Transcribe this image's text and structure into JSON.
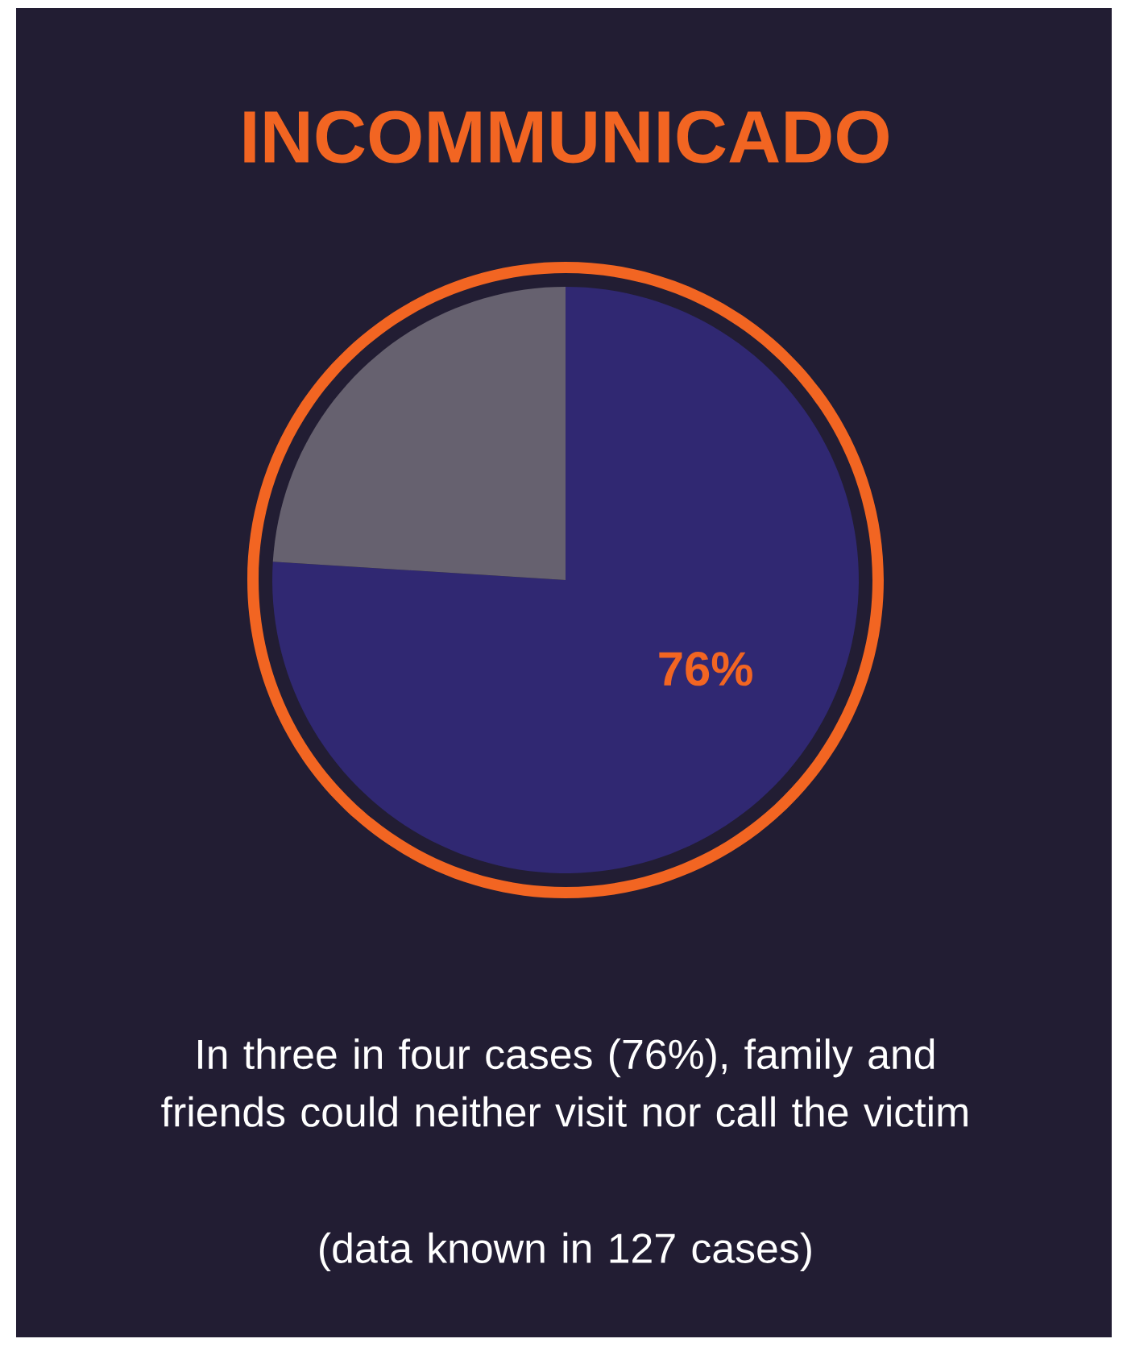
{
  "chart_data": {
    "type": "pie",
    "title": "INCOMMUNICADO",
    "categories": [
      null,
      null
    ],
    "values": [
      76,
      24
    ],
    "colors": [
      "#302872",
      "#66616f"
    ],
    "value_labels": [
      "76%",
      null
    ],
    "annotations": [
      "In three in four cases (76%), family and friends could neither visit nor call the victim",
      "(data known in 127 cases)"
    ]
  }
}
